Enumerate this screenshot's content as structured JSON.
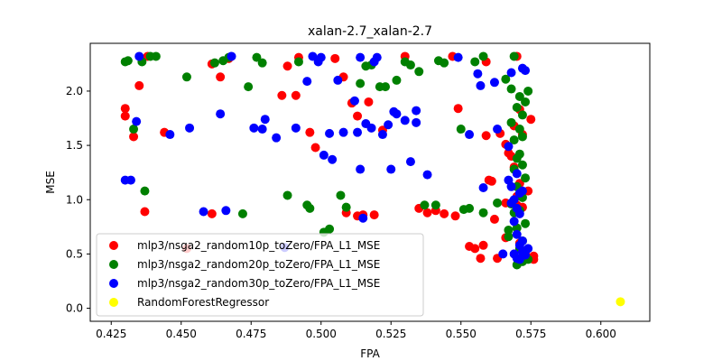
{
  "chart_data": {
    "type": "scatter",
    "title": "xalan-2.7_xalan-2.7",
    "xlabel": "FPA",
    "ylabel": "MSE",
    "xlim": [
      0.4175,
      0.6175
    ],
    "ylim": [
      -0.12,
      2.44
    ],
    "xticks": [
      0.425,
      0.45,
      0.475,
      0.5,
      0.525,
      0.55,
      0.575,
      0.6
    ],
    "xtick_labels": [
      "0.425",
      "0.450",
      "0.475",
      "0.500",
      "0.525",
      "0.550",
      "0.575",
      "0.600"
    ],
    "yticks": [
      0.0,
      0.5,
      1.0,
      1.5,
      2.0
    ],
    "ytick_labels": [
      "0.0",
      "0.5",
      "1.0",
      "1.5",
      "2.0"
    ],
    "grid": false,
    "legend_position": "lower-left",
    "series": [
      {
        "name": "mlp3/nsga2_random10p_toZero/FPA_L1_MSE",
        "color": "#ff0000",
        "points": [
          [
            0.43,
            1.84
          ],
          [
            0.43,
            1.77
          ],
          [
            0.433,
            1.58
          ],
          [
            0.435,
            2.05
          ],
          [
            0.437,
            0.89
          ],
          [
            0.438,
            2.32
          ],
          [
            0.444,
            1.62
          ],
          [
            0.452,
            0.55
          ],
          [
            0.461,
            2.25
          ],
          [
            0.461,
            0.87
          ],
          [
            0.464,
            2.13
          ],
          [
            0.467,
            2.3
          ],
          [
            0.486,
            1.96
          ],
          [
            0.488,
            2.23
          ],
          [
            0.491,
            1.96
          ],
          [
            0.492,
            2.31
          ],
          [
            0.496,
            1.62
          ],
          [
            0.498,
            1.48
          ],
          [
            0.505,
            2.3
          ],
          [
            0.508,
            2.13
          ],
          [
            0.509,
            0.88
          ],
          [
            0.511,
            1.89
          ],
          [
            0.513,
            1.77
          ],
          [
            0.513,
            0.85
          ],
          [
            0.515,
            0.86
          ],
          [
            0.517,
            1.9
          ],
          [
            0.519,
            0.86
          ],
          [
            0.522,
            1.64
          ],
          [
            0.53,
            2.32
          ],
          [
            0.535,
            0.92
          ],
          [
            0.538,
            0.88
          ],
          [
            0.541,
            0.9
          ],
          [
            0.544,
            0.87
          ],
          [
            0.547,
            2.32
          ],
          [
            0.548,
            0.85
          ],
          [
            0.549,
            1.84
          ],
          [
            0.553,
            0.57
          ],
          [
            0.555,
            0.55
          ],
          [
            0.557,
            0.46
          ],
          [
            0.558,
            0.58
          ],
          [
            0.559,
            2.27
          ],
          [
            0.559,
            1.59
          ],
          [
            0.56,
            1.18
          ],
          [
            0.561,
            1.17
          ],
          [
            0.562,
            0.82
          ],
          [
            0.563,
            0.46
          ],
          [
            0.564,
            1.61
          ],
          [
            0.566,
            1.51
          ],
          [
            0.566,
            0.97
          ],
          [
            0.567,
            1.43
          ],
          [
            0.568,
            1.4
          ],
          [
            0.569,
            1.68
          ],
          [
            0.569,
            1.3
          ],
          [
            0.57,
            1.03
          ],
          [
            0.57,
            0.95
          ],
          [
            0.571,
            1.83
          ],
          [
            0.571,
            1.15
          ],
          [
            0.571,
            0.6
          ],
          [
            0.572,
            1.6
          ],
          [
            0.572,
            0.93
          ],
          [
            0.573,
            0.52
          ],
          [
            0.573,
            0.5
          ],
          [
            0.574,
            1.08
          ],
          [
            0.575,
            1.74
          ],
          [
            0.576,
            0.48
          ],
          [
            0.576,
            0.45
          ],
          [
            0.566,
            0.65
          ],
          [
            0.57,
            2.32
          ]
        ]
      },
      {
        "name": "mlp3/nsga2_random20p_toZero/FPA_L1_MSE",
        "color": "#008000",
        "points": [
          [
            0.43,
            2.27
          ],
          [
            0.431,
            2.28
          ],
          [
            0.433,
            1.65
          ],
          [
            0.436,
            2.27
          ],
          [
            0.437,
            1.08
          ],
          [
            0.439,
            2.32
          ],
          [
            0.441,
            2.32
          ],
          [
            0.452,
            2.13
          ],
          [
            0.462,
            2.26
          ],
          [
            0.465,
            2.28
          ],
          [
            0.467,
            2.31
          ],
          [
            0.472,
            0.87
          ],
          [
            0.474,
            2.04
          ],
          [
            0.477,
            2.31
          ],
          [
            0.479,
            2.26
          ],
          [
            0.488,
            1.04
          ],
          [
            0.492,
            2.27
          ],
          [
            0.495,
            0.95
          ],
          [
            0.496,
            0.92
          ],
          [
            0.501,
            0.7
          ],
          [
            0.503,
            0.73
          ],
          [
            0.507,
            1.04
          ],
          [
            0.509,
            0.93
          ],
          [
            0.514,
            2.07
          ],
          [
            0.516,
            2.23
          ],
          [
            0.518,
            2.24
          ],
          [
            0.521,
            2.04
          ],
          [
            0.523,
            2.04
          ],
          [
            0.527,
            2.1
          ],
          [
            0.53,
            2.27
          ],
          [
            0.532,
            2.24
          ],
          [
            0.535,
            2.18
          ],
          [
            0.537,
            0.95
          ],
          [
            0.541,
            0.95
          ],
          [
            0.542,
            2.28
          ],
          [
            0.544,
            2.26
          ],
          [
            0.55,
            1.65
          ],
          [
            0.551,
            0.91
          ],
          [
            0.553,
            0.92
          ],
          [
            0.555,
            2.27
          ],
          [
            0.558,
            2.32
          ],
          [
            0.558,
            0.88
          ],
          [
            0.563,
            0.97
          ],
          [
            0.566,
            2.11
          ],
          [
            0.567,
            0.72
          ],
          [
            0.567,
            0.66
          ],
          [
            0.568,
            2.02
          ],
          [
            0.568,
            1.71
          ],
          [
            0.568,
            0.96
          ],
          [
            0.569,
            2.32
          ],
          [
            0.569,
            1.55
          ],
          [
            0.569,
            1.28
          ],
          [
            0.569,
            0.88
          ],
          [
            0.57,
            1.85
          ],
          [
            0.57,
            1.38
          ],
          [
            0.57,
            1.12
          ],
          [
            0.57,
            0.74
          ],
          [
            0.571,
            1.95
          ],
          [
            0.571,
            1.65
          ],
          [
            0.571,
            1.42
          ],
          [
            0.571,
            0.9
          ],
          [
            0.571,
            0.55
          ],
          [
            0.572,
            1.78
          ],
          [
            0.572,
            1.58
          ],
          [
            0.572,
            1.32
          ],
          [
            0.572,
            1.02
          ],
          [
            0.572,
            0.62
          ],
          [
            0.573,
            1.9
          ],
          [
            0.573,
            1.2
          ],
          [
            0.573,
            0.78
          ],
          [
            0.574,
            2.0
          ],
          [
            0.574,
            0.45
          ],
          [
            0.572,
            0.43
          ],
          [
            0.57,
            0.4
          ]
        ]
      },
      {
        "name": "mlp3/nsga2_random30p_toZero/FPA_L1_MSE",
        "color": "#0000ff",
        "points": [
          [
            0.43,
            1.18
          ],
          [
            0.432,
            1.18
          ],
          [
            0.434,
            1.72
          ],
          [
            0.435,
            2.32
          ],
          [
            0.446,
            1.6
          ],
          [
            0.453,
            1.66
          ],
          [
            0.458,
            0.89
          ],
          [
            0.464,
            1.79
          ],
          [
            0.466,
            0.9
          ],
          [
            0.468,
            2.32
          ],
          [
            0.476,
            1.66
          ],
          [
            0.479,
            1.65
          ],
          [
            0.48,
            1.74
          ],
          [
            0.484,
            1.57
          ],
          [
            0.487,
            0.56
          ],
          [
            0.491,
            1.66
          ],
          [
            0.495,
            2.09
          ],
          [
            0.497,
            2.32
          ],
          [
            0.499,
            2.27
          ],
          [
            0.5,
            2.31
          ],
          [
            0.501,
            1.41
          ],
          [
            0.503,
            1.61
          ],
          [
            0.504,
            1.37
          ],
          [
            0.506,
            2.1
          ],
          [
            0.508,
            1.62
          ],
          [
            0.512,
            1.91
          ],
          [
            0.513,
            1.62
          ],
          [
            0.514,
            2.31
          ],
          [
            0.514,
            1.28
          ],
          [
            0.515,
            0.83
          ],
          [
            0.516,
            1.7
          ],
          [
            0.518,
            1.66
          ],
          [
            0.519,
            2.27
          ],
          [
            0.52,
            2.31
          ],
          [
            0.522,
            1.6
          ],
          [
            0.524,
            1.69
          ],
          [
            0.525,
            1.28
          ],
          [
            0.526,
            1.81
          ],
          [
            0.527,
            1.79
          ],
          [
            0.53,
            1.73
          ],
          [
            0.532,
            1.35
          ],
          [
            0.534,
            1.71
          ],
          [
            0.534,
            1.82
          ],
          [
            0.538,
            1.23
          ],
          [
            0.549,
            2.31
          ],
          [
            0.553,
            1.6
          ],
          [
            0.556,
            2.16
          ],
          [
            0.557,
            2.05
          ],
          [
            0.558,
            1.11
          ],
          [
            0.562,
            2.08
          ],
          [
            0.563,
            1.65
          ],
          [
            0.565,
            0.5
          ],
          [
            0.567,
            1.18
          ],
          [
            0.567,
            1.49
          ],
          [
            0.568,
            1.12
          ],
          [
            0.568,
            0.97
          ],
          [
            0.568,
            2.17
          ],
          [
            0.569,
            1.0
          ],
          [
            0.569,
            0.8
          ],
          [
            0.569,
            0.5
          ],
          [
            0.57,
            1.24
          ],
          [
            0.57,
            0.92
          ],
          [
            0.57,
            0.68
          ],
          [
            0.57,
            0.46
          ],
          [
            0.571,
            1.06
          ],
          [
            0.571,
            0.87
          ],
          [
            0.571,
            0.58
          ],
          [
            0.571,
            0.45
          ],
          [
            0.572,
            2.21
          ],
          [
            0.572,
            1.08
          ],
          [
            0.572,
            0.62
          ],
          [
            0.572,
            0.52
          ],
          [
            0.573,
            2.19
          ],
          [
            0.573,
            0.49
          ],
          [
            0.574,
            0.55
          ]
        ]
      },
      {
        "name": "RandomForestRegressor",
        "color": "#ffff00",
        "points": [
          [
            0.607,
            0.06
          ]
        ]
      }
    ]
  }
}
